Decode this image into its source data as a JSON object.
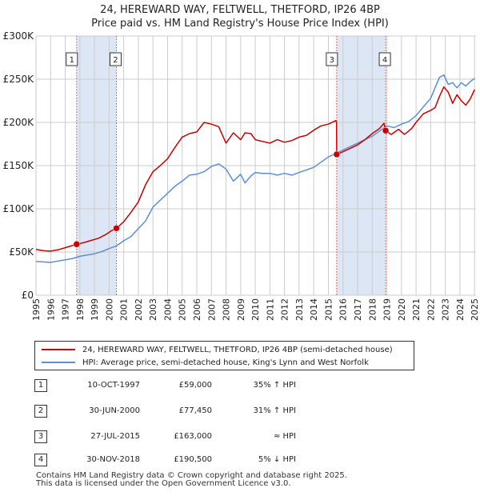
{
  "title_line1": "24, HEREWARD WAY, FELTWELL, THETFORD, IP26 4BP",
  "title_line2": "Price paid vs. HM Land Registry's House Price Index (HPI)",
  "colors": {
    "property": "#cc0000",
    "hpi": "#5b8fd4",
    "band": "#dde6f5",
    "marker_line": "#dd4444",
    "grid": "#cccccc"
  },
  "legend": {
    "property_label": "24, HEREWARD WAY, FELTWELL, THETFORD, IP26 4BP (semi-detached house)",
    "hpi_label": "HPI: Average price, semi-detached house, King's Lynn and West Norfolk"
  },
  "sales": [
    {
      "num": "1",
      "date": "10-OCT-1997",
      "price": "£59,000",
      "hpi": "35% ↑ HPI"
    },
    {
      "num": "2",
      "date": "30-JUN-2000",
      "price": "£77,450",
      "hpi": "31% ↑ HPI"
    },
    {
      "num": "3",
      "date": "27-JUL-2015",
      "price": "£163,000",
      "hpi": "≈ HPI"
    },
    {
      "num": "4",
      "date": "30-NOV-2018",
      "price": "£190,500",
      "hpi": "5% ↓ HPI"
    }
  ],
  "footer_line1": "Contains HM Land Registry data © Crown copyright and database right 2025.",
  "footer_line2": "This data is licensed under the Open Government Licence v3.0.",
  "chart_data": {
    "type": "line",
    "title": "24, HEREWARD WAY, FELTWELL, THETFORD, IP26 4BP",
    "subtitle": "Price paid vs. HM Land Registry's House Price Index (HPI)",
    "xlim": [
      1995,
      2025.1
    ],
    "ylim": [
      0,
      300000
    ],
    "y_ticks": [
      {
        "value": 0,
        "label": "£0"
      },
      {
        "value": 50000,
        "label": "£50K"
      },
      {
        "value": 100000,
        "label": "£100K"
      },
      {
        "value": 150000,
        "label": "£150K"
      },
      {
        "value": 200000,
        "label": "£200K"
      },
      {
        "value": 250000,
        "label": "£250K"
      },
      {
        "value": 300000,
        "label": "£300K"
      }
    ],
    "x_ticks": [
      "1995",
      "1996",
      "1997",
      "1998",
      "1999",
      "2000",
      "2001",
      "2002",
      "2003",
      "2004",
      "2005",
      "2006",
      "2007",
      "2008",
      "2009",
      "2010",
      "2011",
      "2012",
      "2013",
      "2014",
      "2015",
      "2016",
      "2017",
      "2018",
      "2019",
      "2020",
      "2021",
      "2022",
      "2023",
      "2024",
      "2025"
    ],
    "shaded_periods": [
      [
        1997.78,
        2000.5
      ],
      [
        2015.57,
        2018.92
      ]
    ],
    "sale_markers": [
      {
        "label": "1",
        "x": 1997.78,
        "price": 59000
      },
      {
        "label": "2",
        "x": 2000.5,
        "price": 77450
      },
      {
        "label": "3",
        "x": 2015.57,
        "price": 163000
      },
      {
        "label": "4",
        "x": 2018.92,
        "price": 190500
      }
    ],
    "series": [
      {
        "name": "24, HEREWARD WAY, FELTWELL, THETFORD, IP26 4BP (semi-detached house)",
        "color": "#cc0000",
        "x": [
          1995,
          1995.5,
          1996,
          1996.5,
          1997,
          1997.5,
          1997.78,
          1998.3,
          1998.8,
          1999.3,
          1999.8,
          2000.2,
          2000.5,
          2001,
          2001.5,
          2002,
          2002.5,
          2003,
          2003.5,
          2004,
          2004.5,
          2005,
          2005.5,
          2006,
          2006.5,
          2007,
          2007.5,
          2008,
          2008.5,
          2009,
          2009.3,
          2009.7,
          2010,
          2010.5,
          2011,
          2011.5,
          2012,
          2012.5,
          2013,
          2013.5,
          2014,
          2014.5,
          2015,
          2015.5,
          2015.56,
          2015.57,
          2016,
          2016.5,
          2017,
          2017.5,
          2018,
          2018.5,
          2018.8,
          2018.92,
          2019.3,
          2019.8,
          2020.2,
          2020.7,
          2021,
          2021.5,
          2022,
          2022.3,
          2022.6,
          2022.9,
          2023.2,
          2023.5,
          2023.8,
          2024.1,
          2024.4,
          2024.7,
          2025
        ],
        "y": [
          53000,
          51500,
          51000,
          52500,
          55000,
          57500,
          59000,
          61000,
          63500,
          66000,
          70500,
          75000,
          77450,
          85000,
          96000,
          108000,
          128000,
          143000,
          150000,
          158000,
          171000,
          183000,
          187000,
          189000,
          200000,
          198000,
          195000,
          176000,
          188000,
          180000,
          188000,
          187000,
          180000,
          178000,
          176000,
          180000,
          177000,
          179000,
          183000,
          185000,
          191000,
          196000,
          198000,
          202000,
          200000,
          163000,
          166000,
          170000,
          174000,
          180000,
          187000,
          193000,
          199000,
          190500,
          186000,
          192000,
          186000,
          193000,
          200000,
          210000,
          214000,
          217000,
          230000,
          241000,
          235000,
          222000,
          232000,
          225000,
          220000,
          227000,
          238000
        ]
      },
      {
        "name": "HPI: Average price, semi-detached house, King's Lynn and West Norfolk",
        "color": "#5b8fd4",
        "x": [
          1995,
          1995.5,
          1996,
          1996.5,
          1997,
          1997.5,
          1998,
          1998.5,
          1999,
          1999.5,
          2000,
          2000.5,
          2001,
          2001.5,
          2002,
          2002.5,
          2003,
          2003.5,
          2004,
          2004.5,
          2005,
          2005.5,
          2006,
          2006.5,
          2007,
          2007.5,
          2008,
          2008.5,
          2009,
          2009.3,
          2009.7,
          2010,
          2010.5,
          2011,
          2011.5,
          2012,
          2012.5,
          2013,
          2013.5,
          2014,
          2014.5,
          2015,
          2015.5,
          2016,
          2016.5,
          2017,
          2017.5,
          2018,
          2018.5,
          2019,
          2019.5,
          2020,
          2020.5,
          2021,
          2021.5,
          2022,
          2022.3,
          2022.6,
          2022.9,
          2023.2,
          2023.5,
          2023.8,
          2024.1,
          2024.4,
          2024.7,
          2025
        ],
        "y": [
          39000,
          38500,
          38000,
          39500,
          41000,
          42500,
          45000,
          46500,
          48000,
          50500,
          54000,
          57000,
          63000,
          68000,
          77000,
          86000,
          102000,
          110000,
          118000,
          126000,
          132000,
          139000,
          140000,
          143000,
          149000,
          152000,
          146000,
          132000,
          140000,
          130000,
          138000,
          142000,
          141000,
          141000,
          139000,
          141000,
          139000,
          142000,
          145000,
          148000,
          154000,
          160000,
          164000,
          168000,
          172000,
          176000,
          180000,
          184000,
          190000,
          196000,
          194000,
          198000,
          201000,
          208000,
          218000,
          228000,
          240000,
          252000,
          255000,
          244000,
          246000,
          240000,
          246000,
          242000,
          247000,
          251000
        ]
      }
    ]
  }
}
